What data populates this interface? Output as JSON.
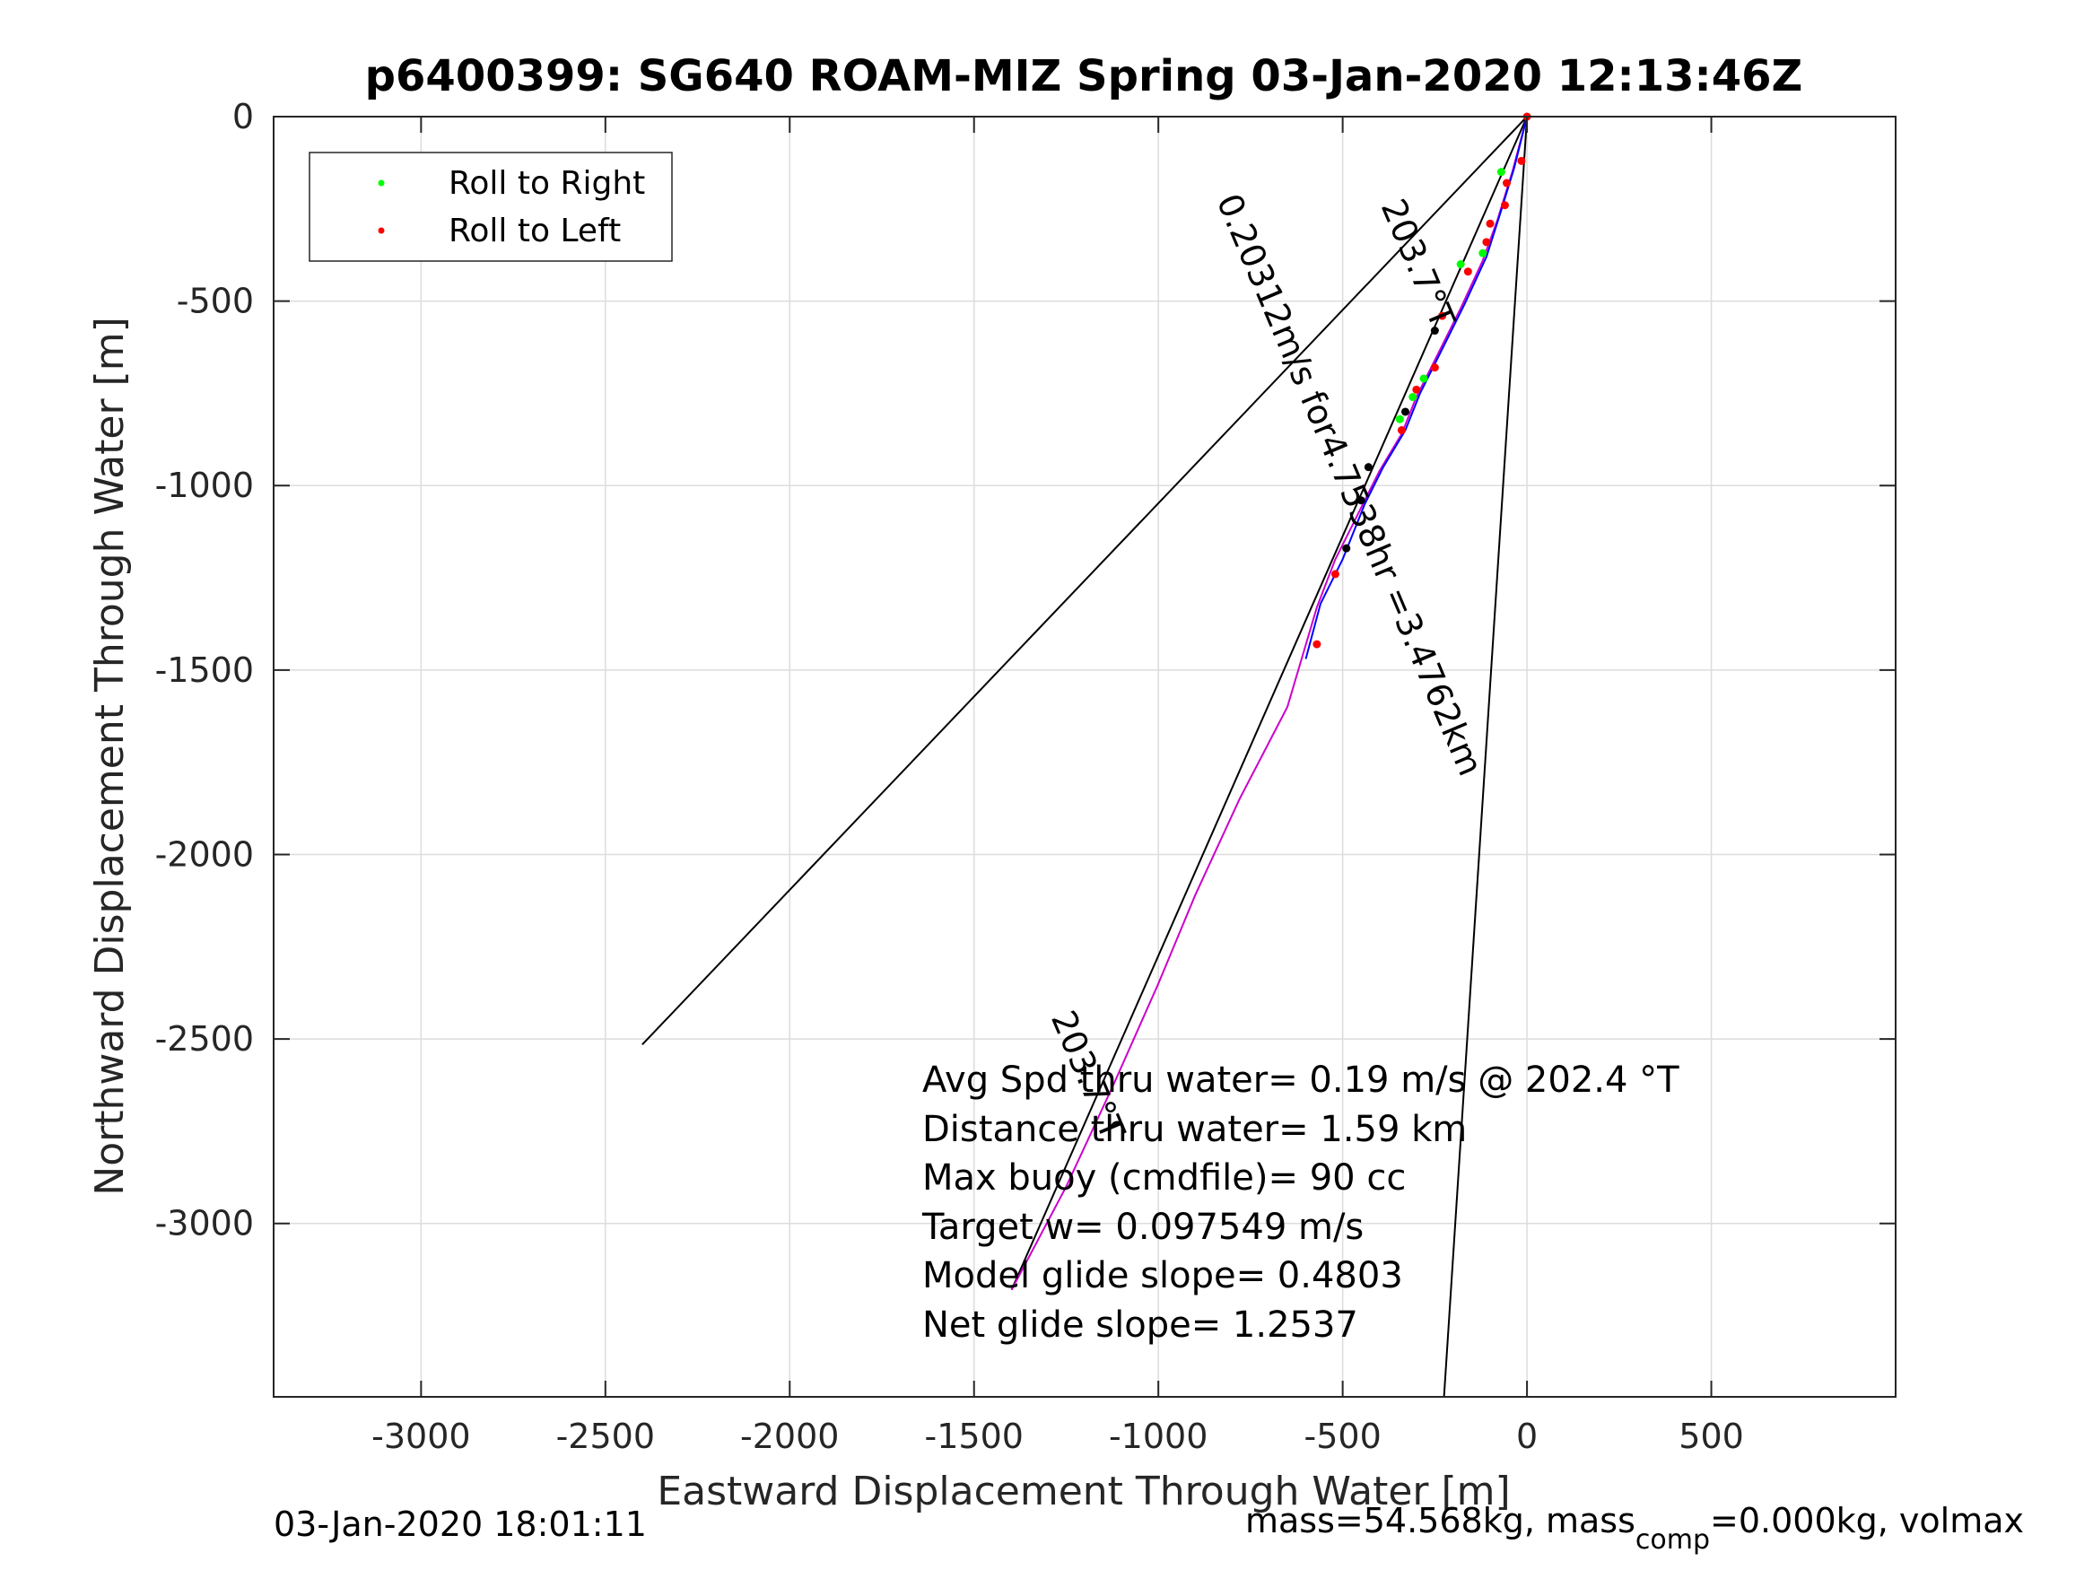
{
  "chart_data": {
    "type": "scatter",
    "title": "p6400399: SG640 ROAM-MIZ Spring 03-Jan-2020 12:13:46Z",
    "xlabel": "Eastward Displacement Through Water [m]",
    "ylabel": "Northward Displacement Through Water [m]",
    "xlim": [
      -3400,
      1000
    ],
    "ylim": [
      -3470,
      0
    ],
    "grid": true,
    "xticks": [
      -3000,
      -2500,
      -2000,
      -1500,
      -1000,
      -500,
      0,
      500
    ],
    "xtick_labels": [
      "-3000",
      "-2500",
      "-2000",
      "-1500",
      "-1000",
      "-500",
      "0",
      "500"
    ],
    "yticks": [
      0,
      -500,
      -1000,
      -1500,
      -2000,
      -2500,
      -3000
    ],
    "ytick_labels": [
      "0",
      "-500",
      "-1000",
      "-1500",
      "-2000",
      "-2500",
      "-3000"
    ],
    "legend": {
      "placement": "top-left",
      "entries": [
        {
          "label": "Roll to Right",
          "color": "#00ff00"
        },
        {
          "label": "Roll to Left",
          "color": "#ff0000"
        }
      ]
    },
    "lines": [
      {
        "color": "#000000",
        "x": [
          0,
          -2400
        ],
        "y": [
          0,
          -2515
        ]
      },
      {
        "color": "#000000",
        "x": [
          0,
          -225
        ],
        "y": [
          0,
          -3470
        ]
      },
      {
        "color": "#000000",
        "x": [
          0,
          -1398
        ],
        "y": [
          0,
          -3180
        ]
      },
      {
        "color": "#cc00cc",
        "x": [
          0,
          -40,
          -80,
          -120,
          -180,
          -240,
          -300,
          -340,
          -400,
          -450,
          -520,
          -570,
          -650,
          -780,
          -900,
          -1000,
          -1120,
          -1250,
          -1398
        ],
        "y": [
          0,
          -150,
          -280,
          -390,
          -520,
          -640,
          -760,
          -860,
          -960,
          -1060,
          -1200,
          -1330,
          -1600,
          -1850,
          -2110,
          -2350,
          -2620,
          -2900,
          -3180
        ]
      },
      {
        "color": "#0000ff",
        "x": [
          0,
          -35,
          -75,
          -110,
          -170,
          -230,
          -290,
          -330,
          -390,
          -440,
          -500,
          -560,
          -600
        ],
        "y": [
          0,
          -140,
          -270,
          -380,
          -510,
          -630,
          -750,
          -850,
          -950,
          -1050,
          -1200,
          -1320,
          -1470
        ]
      }
    ],
    "points": [
      {
        "x": -15,
        "y": -120,
        "color": "#ff0000"
      },
      {
        "x": -55,
        "y": -180,
        "color": "#ff0000"
      },
      {
        "x": -60,
        "y": -240,
        "color": "#ff0000"
      },
      {
        "x": -70,
        "y": -150,
        "color": "#00ff00"
      },
      {
        "x": -100,
        "y": -290,
        "color": "#ff0000"
      },
      {
        "x": -110,
        "y": -340,
        "color": "#ff0000"
      },
      {
        "x": -120,
        "y": -370,
        "color": "#00ff00"
      },
      {
        "x": -160,
        "y": -420,
        "color": "#ff0000"
      },
      {
        "x": -180,
        "y": -400,
        "color": "#00ff00"
      },
      {
        "x": -230,
        "y": -540,
        "color": "#ff0000"
      },
      {
        "x": -250,
        "y": -580,
        "color": "#000000"
      },
      {
        "x": -250,
        "y": -680,
        "color": "#ff0000"
      },
      {
        "x": -280,
        "y": -710,
        "color": "#00ff00"
      },
      {
        "x": -300,
        "y": -740,
        "color": "#ff0000"
      },
      {
        "x": -310,
        "y": -760,
        "color": "#00ff00"
      },
      {
        "x": -330,
        "y": -800,
        "color": "#000000"
      },
      {
        "x": -340,
        "y": -850,
        "color": "#ff0000"
      },
      {
        "x": -345,
        "y": -820,
        "color": "#00ff00"
      },
      {
        "x": -430,
        "y": -950,
        "color": "#000000"
      },
      {
        "x": -450,
        "y": -1040,
        "color": "#000000"
      },
      {
        "x": -490,
        "y": -1170,
        "color": "#000000"
      },
      {
        "x": -520,
        "y": -1240,
        "color": "#ff0000"
      },
      {
        "x": -570,
        "y": -1430,
        "color": "#ff0000"
      },
      {
        "x": 0,
        "y": 0,
        "color": "#ff0000"
      }
    ],
    "annotations": [
      {
        "text": "203.7°T",
        "x": -325,
        "y": -410,
        "rotation": 67
      },
      {
        "text": "0.20312m/s for4.7538hr =3.4762km",
        "x": -510,
        "y": -1010,
        "rotation": 67
      },
      {
        "text": "203.7°T",
        "x": -1220,
        "y": -2610,
        "rotation": 67
      }
    ],
    "stats": [
      "Avg Spd thru water=  0.19 m/s @ 202.4 °T",
      "Distance thru water=  1.59 km",
      "Max buoy (cmdfile)= 90 cc",
      "Target w= 0.097549 m/s",
      "Model glide slope= 0.4803",
      "Net glide slope= 1.2537"
    ]
  },
  "footer": {
    "date": "03-Jan-2020 18:01:11",
    "mass_prefix": "mass=54.568kg, mass",
    "mass_subscript": "comp",
    "mass_suffix": "=0.000kg, volmax"
  }
}
